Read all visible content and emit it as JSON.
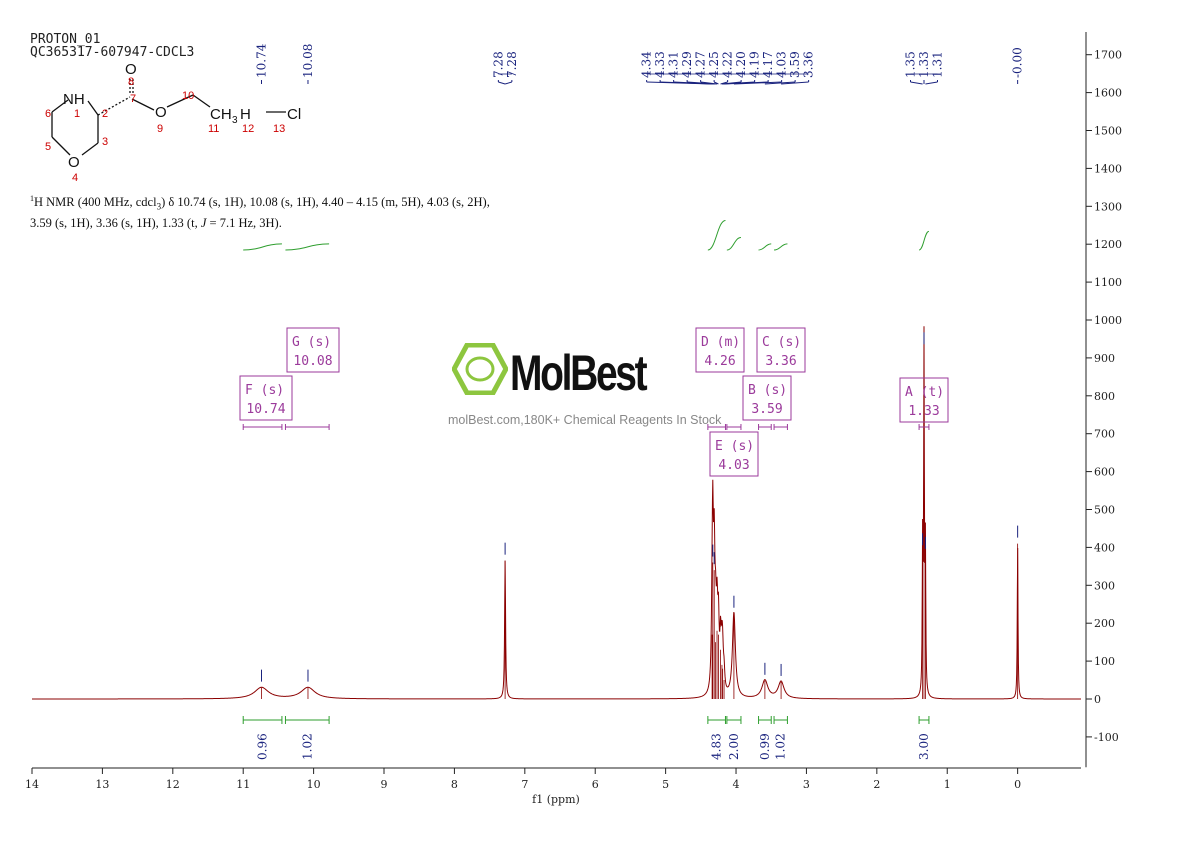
{
  "header": {
    "line1": "PROTON_01",
    "line2": "QC365317-607947-CDCL3"
  },
  "summary": {
    "nucleus_sup": "1",
    "text_a": "H NMR (400 MHz, cdcl",
    "sub3": "3",
    "text_b": ") δ 10.74 (s, 1H), 10.08 (s, 1H), 4.40 – 4.15 (m, 5H), 4.03 (s, 2H),",
    "text_c": "3.59 (s, 1H), 3.36 (s, 1H), 1.33 (t, ",
    "j_italic": "J",
    "text_d": " = 7.1 Hz, 3H)."
  },
  "structure": {
    "atoms": {
      "N": "NH",
      "O_ring": "O",
      "O_carbonyl": "O",
      "O_ester": "O",
      "CH3": "CH",
      "sub3": "3",
      "H": "H",
      "Cl": "Cl"
    },
    "numbers": [
      "1",
      "2",
      "3",
      "4",
      "5",
      "6",
      "7",
      "8",
      "9",
      "10",
      "11",
      "12",
      "13"
    ],
    "label_color": "#cc0000"
  },
  "watermark": {
    "brand": "MolBest",
    "tagline": "molBest.com,180K+ Chemical Reagents In Stock",
    "brand_color": "#8dc63f"
  },
  "colors": {
    "spectrum": "#8b0000",
    "peak_label": "#1a237e",
    "integral": "#2e9e2e",
    "multiplet": "#9b3a9b",
    "axis": "#222222"
  },
  "chart_data": {
    "type": "line",
    "xlabel": "f1 (ppm)",
    "x_reversed": true,
    "xlim": [
      14,
      -0.9
    ],
    "ylim": [
      -180,
      1760
    ],
    "x_ticks": [
      14,
      13,
      12,
      11,
      10,
      9,
      8,
      7,
      6,
      5,
      4,
      3,
      2,
      1,
      0
    ],
    "y_ticks": [
      -100,
      0,
      100,
      200,
      300,
      400,
      500,
      600,
      700,
      800,
      900,
      1000,
      1100,
      1200,
      1300,
      1400,
      1500,
      1600,
      1700
    ],
    "peaks": [
      {
        "ppm": 10.74,
        "height": 30,
        "width": 0.12
      },
      {
        "ppm": 10.08,
        "height": 30,
        "width": 0.12
      },
      {
        "ppm": 7.28,
        "height": 365,
        "width": 0.008
      },
      {
        "ppm": 4.34,
        "height": 170,
        "width": 0.012
      },
      {
        "ppm": 4.33,
        "height": 360,
        "width": 0.01
      },
      {
        "ppm": 4.31,
        "height": 340,
        "width": 0.012
      },
      {
        "ppm": 4.29,
        "height": 150,
        "width": 0.012
      },
      {
        "ppm": 4.27,
        "height": 180,
        "width": 0.012
      },
      {
        "ppm": 4.25,
        "height": 170,
        "width": 0.012
      },
      {
        "ppm": 4.22,
        "height": 130,
        "width": 0.012
      },
      {
        "ppm": 4.2,
        "height": 90,
        "width": 0.012
      },
      {
        "ppm": 4.19,
        "height": 80,
        "width": 0.012
      },
      {
        "ppm": 4.17,
        "height": 50,
        "width": 0.012
      },
      {
        "ppm": 4.03,
        "height": 225,
        "width": 0.025
      },
      {
        "ppm": 3.59,
        "height": 48,
        "width": 0.05
      },
      {
        "ppm": 3.36,
        "height": 45,
        "width": 0.05
      },
      {
        "ppm": 1.35,
        "height": 390,
        "width": 0.006
      },
      {
        "ppm": 1.33,
        "height": 920,
        "width": 0.006
      },
      {
        "ppm": 1.31,
        "height": 380,
        "width": 0.006
      },
      {
        "ppm": 0.0,
        "height": 410,
        "width": 0.006
      }
    ],
    "peak_labels": [
      {
        "ppm": 10.74,
        "text": "10.74",
        "group": "g1"
      },
      {
        "ppm": 10.08,
        "text": "10.08",
        "group": "g2"
      },
      {
        "ppm": 7.28,
        "text": "7.28",
        "group": "g3"
      },
      {
        "ppm": 7.28,
        "text": "7.28",
        "group": "g3"
      },
      {
        "ppm": 4.34,
        "text": "4.34",
        "group": "g4"
      },
      {
        "ppm": 4.33,
        "text": "4.33",
        "group": "g4"
      },
      {
        "ppm": 4.31,
        "text": "4.31",
        "group": "g4"
      },
      {
        "ppm": 4.29,
        "text": "4.29",
        "group": "g4"
      },
      {
        "ppm": 4.27,
        "text": "4.27",
        "group": "g4"
      },
      {
        "ppm": 4.25,
        "text": "4.25",
        "group": "g4"
      },
      {
        "ppm": 4.22,
        "text": "4.22",
        "group": "g4"
      },
      {
        "ppm": 4.2,
        "text": "4.20",
        "group": "g4"
      },
      {
        "ppm": 4.19,
        "text": "4.19",
        "group": "g4"
      },
      {
        "ppm": 4.17,
        "text": "4.17",
        "group": "g4"
      },
      {
        "ppm": 4.03,
        "text": "4.03",
        "group": "g4"
      },
      {
        "ppm": 3.59,
        "text": "3.59",
        "group": "g4"
      },
      {
        "ppm": 3.36,
        "text": "3.36",
        "group": "g4"
      },
      {
        "ppm": 1.35,
        "text": "1.35",
        "group": "g5"
      },
      {
        "ppm": 1.33,
        "text": "1.33",
        "group": "g5"
      },
      {
        "ppm": 1.31,
        "text": "1.31",
        "group": "g5"
      },
      {
        "ppm": 0.0,
        "text": "-0.00",
        "group": "g6"
      }
    ],
    "integrals": [
      {
        "from": 11.0,
        "to": 10.45,
        "value": "0.96",
        "rise": 80
      },
      {
        "from": 10.4,
        "to": 9.78,
        "value": "1.02",
        "rise": 80
      },
      {
        "from": 4.4,
        "to": 4.15,
        "value": "4.83",
        "rise": 390
      },
      {
        "from": 4.13,
        "to": 3.93,
        "value": "2.00",
        "rise": 165
      },
      {
        "from": 3.68,
        "to": 3.5,
        "value": "0.99",
        "rise": 80
      },
      {
        "from": 3.46,
        "to": 3.27,
        "value": "1.02",
        "rise": 80
      },
      {
        "from": 1.4,
        "to": 1.26,
        "value": "3.00",
        "rise": 245
      }
    ],
    "multiplets": [
      {
        "letter": "A",
        "mult": "t",
        "shift": "1.33",
        "from": 1.4,
        "to": 1.26
      },
      {
        "letter": "B",
        "mult": "s",
        "shift": "3.59",
        "from": 3.68,
        "to": 3.5
      },
      {
        "letter": "C",
        "mult": "s",
        "shift": "3.36",
        "from": 3.46,
        "to": 3.27
      },
      {
        "letter": "D",
        "mult": "m",
        "shift": "4.26",
        "from": 4.4,
        "to": 4.15
      },
      {
        "letter": "E",
        "mult": "s",
        "shift": "4.03",
        "from": 4.13,
        "to": 3.93
      },
      {
        "letter": "F",
        "mult": "s",
        "shift": "10.74",
        "from": 11.0,
        "to": 10.45
      },
      {
        "letter": "G",
        "mult": "s",
        "shift": "10.08",
        "from": 10.4,
        "to": 9.78
      }
    ]
  }
}
